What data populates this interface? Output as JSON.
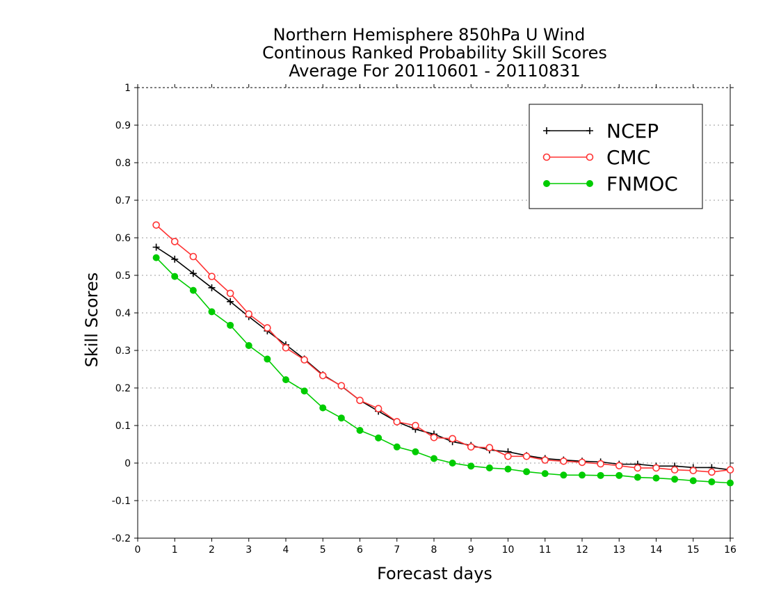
{
  "chart_data": {
    "type": "line",
    "title_lines": [
      "Northern Hemisphere 850hPa U Wind",
      "Continous Ranked Probability Skill Scores",
      "Average For 20110601 - 20110831"
    ],
    "xlabel": "Forecast days",
    "ylabel": "Skill Scores",
    "xlim": [
      0,
      16
    ],
    "ylim": [
      -0.2,
      1
    ],
    "x_ticks": [
      "0",
      "1",
      "2",
      "3",
      "4",
      "5",
      "6",
      "7",
      "8",
      "9",
      "10",
      "11",
      "12",
      "13",
      "14",
      "15",
      "16"
    ],
    "y_ticks": [
      "-0.2",
      "-0.1",
      "0",
      "0.1",
      "0.2",
      "0.3",
      "0.4",
      "0.5",
      "0.6",
      "0.7",
      "0.8",
      "0.9",
      "1"
    ],
    "grid": "horizontal dotted",
    "legend_position": "top-right",
    "x": [
      0.5,
      1,
      1.5,
      2,
      2.5,
      3,
      3.5,
      4,
      4.5,
      5,
      5.5,
      6,
      6.5,
      7,
      7.5,
      8,
      8.5,
      9,
      9.5,
      10,
      10.5,
      11,
      11.5,
      12,
      12.5,
      13,
      13.5,
      14,
      14.5,
      15,
      15.5,
      16
    ],
    "series": [
      {
        "name": "NCEP",
        "color": "#000000",
        "marker": "plus",
        "values": [
          0.575,
          0.543,
          0.505,
          0.467,
          0.43,
          0.39,
          0.352,
          0.315,
          0.277,
          0.235,
          0.205,
          0.167,
          0.138,
          0.11,
          0.09,
          0.077,
          0.057,
          0.047,
          0.035,
          0.03,
          0.02,
          0.012,
          0.008,
          0.005,
          0.003,
          -0.003,
          -0.003,
          -0.008,
          -0.008,
          -0.012,
          -0.012,
          -0.018
        ]
      },
      {
        "name": "CMC",
        "color": "#ff3333",
        "marker": "open-circle",
        "values": [
          0.634,
          0.59,
          0.55,
          0.497,
          0.452,
          0.397,
          0.36,
          0.307,
          0.275,
          0.233,
          0.206,
          0.167,
          0.145,
          0.11,
          0.1,
          0.068,
          0.065,
          0.043,
          0.041,
          0.018,
          0.018,
          0.008,
          0.005,
          0.002,
          -0.002,
          -0.007,
          -0.013,
          -0.013,
          -0.018,
          -0.02,
          -0.024,
          -0.018
        ]
      },
      {
        "name": "FNMOC",
        "color": "#00cc00",
        "marker": "filled-circle",
        "values": [
          0.547,
          0.497,
          0.46,
          0.403,
          0.367,
          0.313,
          0.277,
          0.222,
          0.192,
          0.147,
          0.12,
          0.087,
          0.067,
          0.043,
          0.03,
          0.012,
          0.0,
          -0.008,
          -0.013,
          -0.016,
          -0.023,
          -0.028,
          -0.032,
          -0.032,
          -0.033,
          -0.033,
          -0.038,
          -0.04,
          -0.043,
          -0.047,
          -0.05,
          -0.053
        ]
      }
    ]
  }
}
